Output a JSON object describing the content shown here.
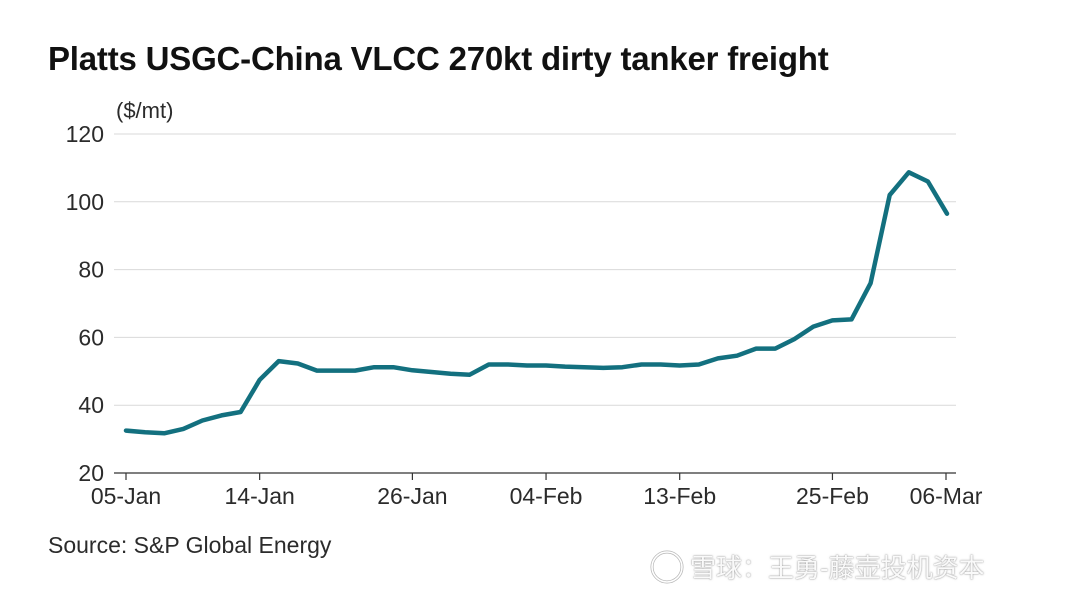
{
  "page": {
    "title": "Platts USGC-China VLCC 270kt dirty tanker freight",
    "source": "Source: S&P Global Energy",
    "watermark": "雪球：王勇-藤壶投机资本"
  },
  "colors": {
    "line": "#13707f",
    "grid": "#d9d9d9",
    "axis": "#333333",
    "text": "#2b2b2b"
  },
  "chart_data": {
    "type": "line",
    "title": "Platts USGC-China VLCC 270kt dirty tanker freight",
    "ylabel": "($/mt)",
    "xlabel": "",
    "ylim": [
      20,
      120
    ],
    "yticks": [
      20,
      40,
      60,
      80,
      100,
      120
    ],
    "xticks": [
      "05-Jan",
      "14-Jan",
      "26-Jan",
      "04-Feb",
      "13-Feb",
      "25-Feb",
      "06-Mar"
    ],
    "grid": true,
    "series": [
      {
        "values": [
          {
            "x": "05-Jan",
            "y": 32.5
          },
          {
            "x": "06-Jan",
            "y": 32.0
          },
          {
            "x": "07-Jan",
            "y": 31.7
          },
          {
            "x": "08-Jan",
            "y": 33.0
          },
          {
            "x": "09-Jan",
            "y": 35.5
          },
          {
            "x": "12-Jan",
            "y": 37.0
          },
          {
            "x": "13-Jan",
            "y": 38.0
          },
          {
            "x": "14-Jan",
            "y": 47.5
          },
          {
            "x": "15-Jan",
            "y": 53.0
          },
          {
            "x": "16-Jan",
            "y": 52.3
          },
          {
            "x": "19-Jan",
            "y": 50.2
          },
          {
            "x": "20-Jan",
            "y": 50.2
          },
          {
            "x": "21-Jan",
            "y": 50.2
          },
          {
            "x": "22-Jan",
            "y": 51.2
          },
          {
            "x": "23-Jan",
            "y": 51.2
          },
          {
            "x": "26-Jan",
            "y": 50.3
          },
          {
            "x": "27-Jan",
            "y": 49.8
          },
          {
            "x": "28-Jan",
            "y": 49.3
          },
          {
            "x": "29-Jan",
            "y": 49.0
          },
          {
            "x": "30-Jan",
            "y": 52.0
          },
          {
            "x": "02-Feb",
            "y": 52.0
          },
          {
            "x": "03-Feb",
            "y": 51.7
          },
          {
            "x": "04-Feb",
            "y": 51.7
          },
          {
            "x": "05-Feb",
            "y": 51.4
          },
          {
            "x": "06-Feb",
            "y": 51.2
          },
          {
            "x": "09-Feb",
            "y": 51.0
          },
          {
            "x": "10-Feb",
            "y": 51.2
          },
          {
            "x": "11-Feb",
            "y": 52.0
          },
          {
            "x": "12-Feb",
            "y": 52.0
          },
          {
            "x": "13-Feb",
            "y": 51.7
          },
          {
            "x": "16-Feb",
            "y": 52.0
          },
          {
            "x": "17-Feb",
            "y": 53.8
          },
          {
            "x": "18-Feb",
            "y": 54.6
          },
          {
            "x": "19-Feb",
            "y": 56.7
          },
          {
            "x": "20-Feb",
            "y": 56.7
          },
          {
            "x": "23-Feb",
            "y": 59.5
          },
          {
            "x": "24-Feb",
            "y": 63.2
          },
          {
            "x": "25-Feb",
            "y": 65.0
          },
          {
            "x": "26-Feb",
            "y": 65.3
          },
          {
            "x": "27-Feb",
            "y": 76.0
          },
          {
            "x": "02-Mar",
            "y": 102.0
          },
          {
            "x": "03-Mar",
            "y": 108.7
          },
          {
            "x": "04-Mar",
            "y": 106.0
          },
          {
            "x": "05-Mar",
            "y": 96.5
          }
        ]
      }
    ]
  }
}
